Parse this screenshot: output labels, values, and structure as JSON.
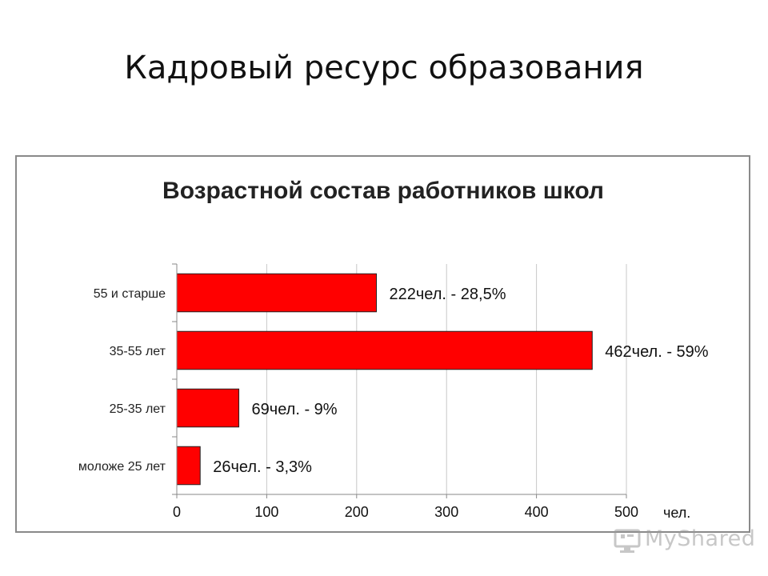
{
  "slide": {
    "title": "Кадровый ресурс образования"
  },
  "watermark": {
    "text": "MyShared"
  },
  "chart_data": {
    "type": "bar",
    "orientation": "horizontal",
    "title": "Возрастной состав работников школ",
    "categories": [
      "55 и старше",
      "35-55 лет",
      "25-35 лет",
      "моложе 25 лет"
    ],
    "values": [
      222,
      462,
      69,
      26
    ],
    "data_labels": [
      "222чел. - 28,5%",
      "462чел. - 59%",
      "69чел. - 9%",
      "26чел. - 3,3%"
    ],
    "xlabel": "чел.",
    "ylabel": "",
    "xlim": [
      0,
      500
    ],
    "x_ticks": [
      0,
      100,
      200,
      300,
      400,
      500
    ],
    "grid": true,
    "bar_color": "#ff0000"
  }
}
